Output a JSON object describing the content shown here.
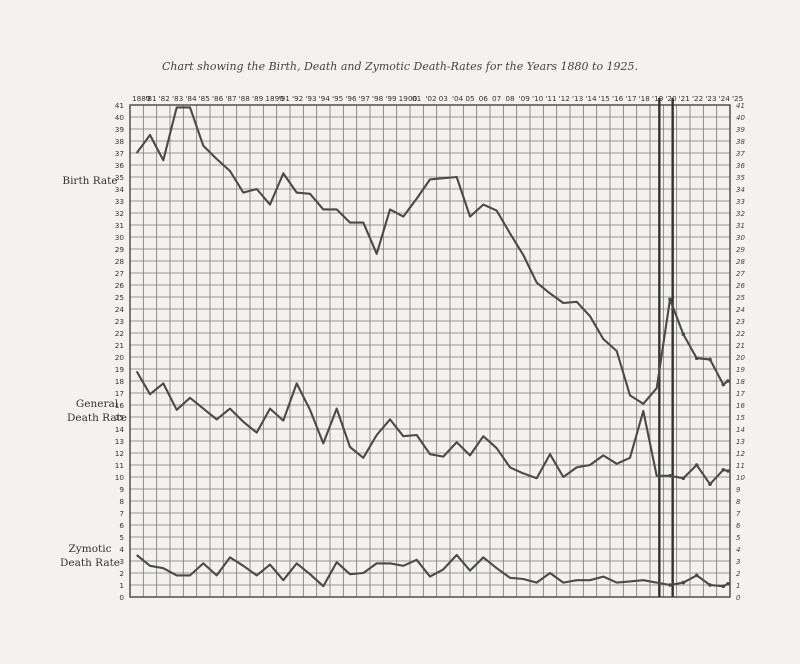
{
  "chart_data": {
    "type": "line",
    "title": "Chart showing the Birth, Death and Zymotic Death-Rates for the Years 1880 to 1925.",
    "xlabel": "",
    "ylabel": "",
    "x_tick_labels": [
      "1880",
      "'81",
      "'82",
      "'83",
      "'84",
      "'85",
      "'86",
      "'87",
      "'88",
      "'89",
      "1890",
      "'91",
      "'92",
      "'93",
      "'94",
      "'95",
      "'96",
      "'97",
      "'98",
      "'99",
      "1900",
      "01",
      "'02",
      "03",
      "'04",
      "05",
      "06",
      "07",
      "08",
      "'09",
      "'10",
      "'11",
      "'12",
      "'13",
      "'14",
      "'15",
      "'16",
      "'17",
      "'18",
      "'19",
      "'20",
      "'21",
      "'22",
      "'23",
      "'24",
      "'25"
    ],
    "x": [
      1880,
      1881,
      1882,
      1883,
      1884,
      1885,
      1886,
      1887,
      1888,
      1889,
      1890,
      1891,
      1892,
      1893,
      1894,
      1895,
      1896,
      1897,
      1898,
      1899,
      1900,
      1901,
      1902,
      1903,
      1904,
      1905,
      1906,
      1907,
      1908,
      1909,
      1910,
      1911,
      1912,
      1913,
      1914,
      1915,
      1916,
      1917,
      1918,
      1919,
      1920,
      1921,
      1922,
      1923,
      1924,
      1925
    ],
    "xlim": [
      1880,
      1925
    ],
    "ylim": [
      0,
      41
    ],
    "y_ticks_left": [
      "0",
      "1",
      "2",
      "3",
      "4",
      "5",
      "6",
      "7",
      "8",
      "9",
      "10",
      "11",
      "12",
      "13",
      "14",
      "15",
      "16",
      "17",
      "18",
      "19",
      "20",
      "21",
      "22",
      "23",
      "24",
      "25",
      "26",
      "27",
      "28",
      "29",
      "30",
      "31",
      "32",
      "33",
      "34",
      "35",
      "36",
      "37",
      "38",
      "39",
      "40",
      "41"
    ],
    "y_ticks_right": [
      "0",
      "1",
      "2",
      "3",
      "4",
      "5",
      "6",
      "7",
      "8",
      "9",
      "10",
      "11",
      "12",
      "13",
      "14",
      "15",
      "16",
      "17",
      "18",
      "19",
      "20",
      "21",
      "22",
      "23",
      "24",
      "25",
      "26",
      "27",
      "28",
      "29",
      "30",
      "31",
      "32",
      "33",
      "34",
      "35",
      "36",
      "37",
      "38",
      "39",
      "40",
      "41"
    ],
    "grid": true,
    "legend": "none",
    "series": [
      {
        "name": "Birth Rate",
        "values": [
          37.0,
          38.5,
          36.4,
          40.8,
          40.8,
          37.6,
          36.5,
          35.5,
          33.7,
          34.0,
          32.7,
          35.3,
          33.7,
          33.6,
          32.3,
          32.3,
          31.2,
          31.2,
          28.6,
          32.3,
          31.7,
          33.2,
          34.8,
          34.9,
          35.0,
          31.7,
          32.7,
          32.2,
          30.3,
          28.5,
          26.2,
          25.3,
          24.5,
          24.6,
          23.4,
          21.5,
          20.5,
          16.8,
          16.1,
          17.4,
          24.8,
          21.9,
          19.9,
          19.8,
          17.7,
          18.0
        ]
      },
      {
        "name": "General Death Rate",
        "values": [
          18.8,
          16.9,
          17.8,
          15.6,
          16.6,
          15.7,
          14.8,
          15.7,
          14.6,
          13.7,
          15.7,
          14.7,
          17.8,
          15.6,
          12.8,
          15.7,
          12.5,
          11.6,
          13.5,
          14.8,
          13.4,
          13.5,
          11.9,
          11.7,
          12.9,
          11.8,
          13.4,
          12.4,
          10.8,
          10.3,
          9.9,
          11.9,
          10.0,
          10.8,
          11.0,
          11.8,
          11.1,
          11.6,
          15.5,
          10.1,
          10.1,
          9.9,
          11.0,
          9.4,
          10.6,
          10.5
        ]
      },
      {
        "name": "Zymotic Death Rate",
        "values": [
          3.5,
          2.6,
          2.4,
          1.8,
          1.8,
          2.8,
          1.8,
          3.3,
          2.6,
          1.8,
          2.7,
          1.4,
          2.8,
          1.9,
          0.9,
          2.9,
          1.9,
          2.0,
          2.8,
          2.8,
          2.6,
          3.1,
          1.7,
          2.3,
          3.5,
          2.2,
          3.3,
          2.4,
          1.6,
          1.5,
          1.2,
          2.0,
          1.2,
          1.4,
          1.4,
          1.7,
          1.2,
          1.3,
          1.4,
          1.2,
          1.0,
          1.2,
          1.8,
          1.0,
          0.9,
          1.1
        ]
      }
    ]
  }
}
